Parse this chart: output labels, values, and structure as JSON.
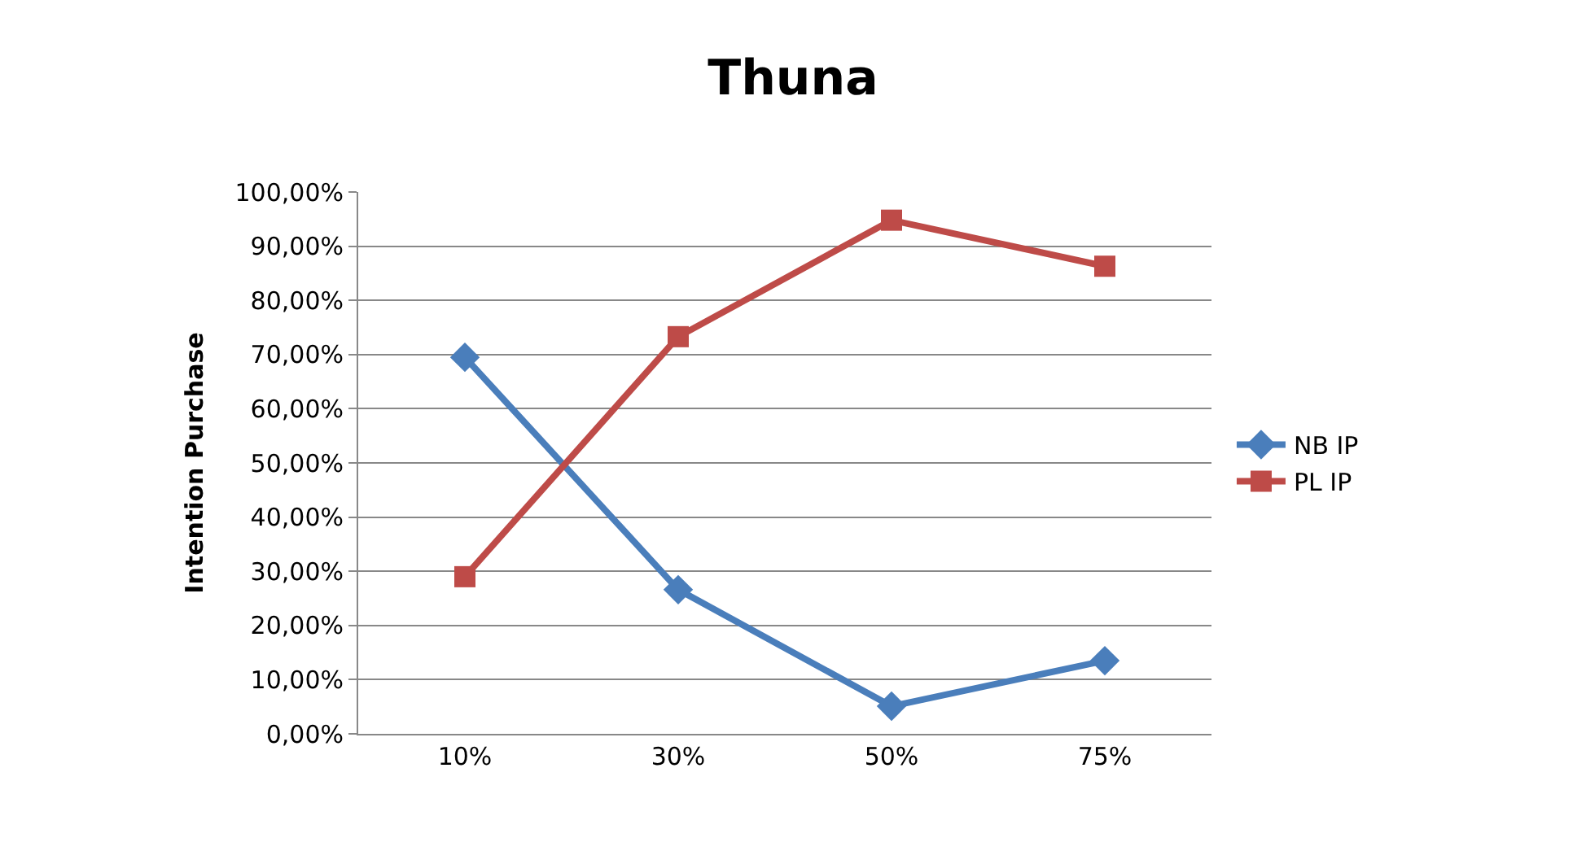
{
  "chart_data": {
    "type": "line",
    "title": "Thuna",
    "ylabel": "Intention Purchase",
    "categories": [
      "10%",
      "30%",
      "50%",
      "75%"
    ],
    "series": [
      {
        "name": "NB IP",
        "color": "#4a7ebb",
        "marker": "diamond",
        "values": [
          69.5,
          26.6,
          5.1,
          13.5
        ]
      },
      {
        "name": "PL IP",
        "color": "#be4b48",
        "marker": "square",
        "values": [
          29.0,
          73.3,
          94.8,
          86.3
        ]
      }
    ],
    "ylim": [
      0,
      100
    ],
    "yticks": [
      {
        "value": 0,
        "label": "0,00%"
      },
      {
        "value": 10,
        "label": "10,00%"
      },
      {
        "value": 20,
        "label": "20,00%"
      },
      {
        "value": 30,
        "label": "30,00%"
      },
      {
        "value": 40,
        "label": "40,00%"
      },
      {
        "value": 50,
        "label": "50,00%"
      },
      {
        "value": 60,
        "label": "60,00%"
      },
      {
        "value": 70,
        "label": "70,00%"
      },
      {
        "value": 80,
        "label": "80,00%"
      },
      {
        "value": 90,
        "label": "90,00%"
      },
      {
        "value": 100,
        "label": "100,00%"
      }
    ],
    "grid": "y",
    "legend": "right",
    "line_style": "solid"
  }
}
